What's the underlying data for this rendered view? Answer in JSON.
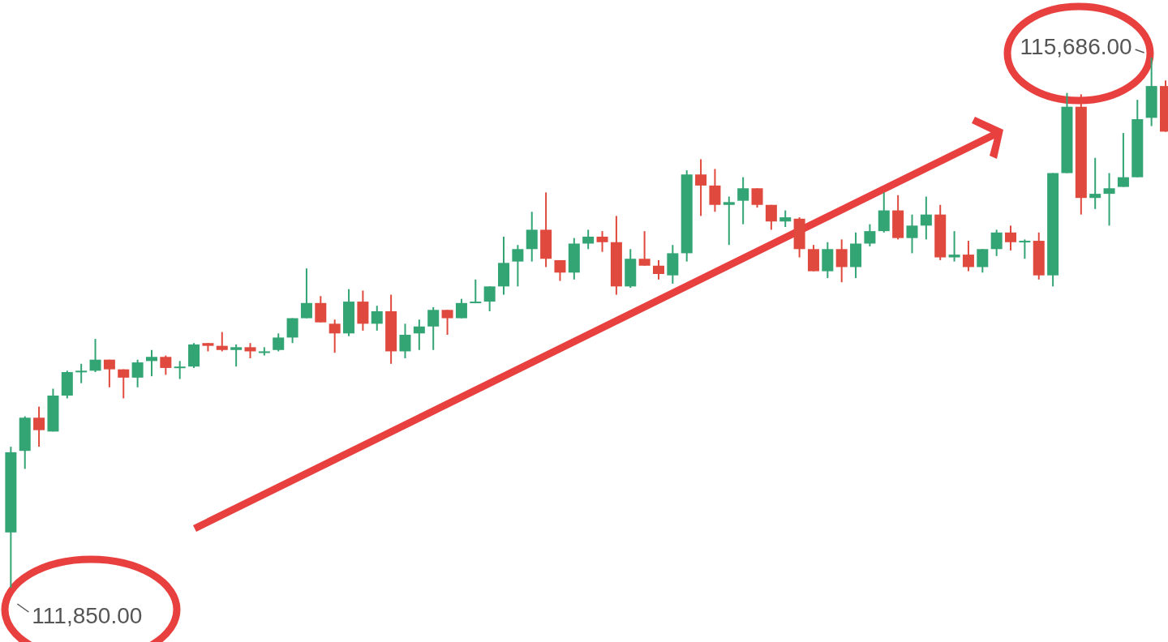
{
  "chart_data": {
    "type": "candlestick",
    "categories": [
      null,
      null,
      null,
      null,
      null,
      null,
      null,
      null,
      null,
      null,
      null,
      null,
      null,
      null,
      null,
      null,
      null,
      null,
      null,
      null,
      null,
      null,
      null,
      null,
      null,
      null,
      null,
      null,
      null,
      null,
      null,
      null,
      null,
      null,
      null,
      null,
      null,
      null,
      null,
      null,
      null,
      null,
      null,
      null,
      null,
      null,
      null,
      null,
      null,
      null,
      null,
      null,
      null,
      null,
      null,
      null,
      null,
      null,
      null,
      null,
      null,
      null,
      null,
      null,
      null,
      null,
      null,
      null,
      null,
      null,
      null,
      null,
      null,
      null,
      null,
      null,
      null,
      null,
      null,
      null,
      null,
      null,
      null,
      null
    ],
    "ohlc": [
      null,
      [
        112250,
        112870,
        111850,
        112830
      ],
      [
        112840,
        113090,
        112710,
        113080
      ],
      [
        113080,
        113160,
        112870,
        112990
      ],
      [
        112980,
        113290,
        112980,
        113240
      ],
      [
        113240,
        113420,
        113220,
        113410
      ],
      [
        113410,
        113470,
        113330,
        113420
      ],
      [
        113420,
        113650,
        113410,
        113500
      ],
      [
        113500,
        113500,
        113300,
        113430
      ],
      [
        113430,
        113430,
        113220,
        113370
      ],
      [
        113370,
        113500,
        113300,
        113480
      ],
      [
        113490,
        113570,
        113380,
        113520
      ],
      [
        113520,
        113530,
        113390,
        113440
      ],
      [
        113440,
        113490,
        113360,
        113450
      ],
      [
        113450,
        113620,
        113440,
        113610
      ],
      [
        113620,
        113620,
        113560,
        113600
      ],
      [
        113600,
        113700,
        113560,
        113570
      ],
      [
        113570,
        113610,
        113450,
        113590
      ],
      [
        113590,
        113620,
        113510,
        113560
      ],
      [
        113550,
        113590,
        113530,
        113560
      ],
      [
        113570,
        113690,
        113560,
        113660
      ],
      [
        113660,
        113800,
        113620,
        113800
      ],
      [
        113800,
        114160,
        113800,
        113910
      ],
      [
        113910,
        113960,
        113770,
        113770
      ],
      [
        113760,
        113790,
        113550,
        113690
      ],
      [
        113690,
        114010,
        113670,
        113920
      ],
      [
        113920,
        114000,
        113710,
        113760
      ],
      [
        113760,
        113890,
        113710,
        113850
      ],
      [
        113850,
        113970,
        113470,
        113560
      ],
      [
        113560,
        113760,
        113510,
        113680
      ],
      [
        113690,
        113790,
        113570,
        113740
      ],
      [
        113740,
        113880,
        113570,
        113860
      ],
      [
        113860,
        113860,
        113680,
        113800
      ],
      [
        113800,
        113940,
        113800,
        113910
      ],
      [
        113910,
        114080,
        113910,
        113920
      ],
      [
        113920,
        114030,
        113850,
        114030
      ],
      [
        114030,
        114390,
        113970,
        114200
      ],
      [
        114210,
        114330,
        114030,
        114300
      ],
      [
        114300,
        114570,
        114210,
        114440
      ],
      [
        114440,
        114710,
        114170,
        114230
      ],
      [
        114220,
        114220,
        114070,
        114130
      ],
      [
        114130,
        114380,
        114080,
        114340
      ],
      [
        114340,
        114440,
        114300,
        114390
      ],
      [
        114390,
        114430,
        114280,
        114350
      ],
      [
        114350,
        114540,
        113970,
        114030
      ],
      [
        114030,
        114300,
        114020,
        114230
      ],
      [
        114230,
        114430,
        114180,
        114180
      ],
      [
        114180,
        114220,
        114080,
        114120
      ],
      [
        114110,
        114330,
        114050,
        114270
      ],
      [
        114270,
        114870,
        114210,
        114840
      ],
      [
        114840,
        114950,
        114540,
        114760
      ],
      [
        114760,
        114880,
        114570,
        114620
      ],
      [
        114620,
        114680,
        114330,
        114640
      ],
      [
        114650,
        114820,
        114480,
        114740
      ],
      [
        114740,
        114740,
        114600,
        114620
      ],
      [
        114620,
        114620,
        114440,
        114500
      ],
      [
        114500,
        114580,
        114460,
        114530
      ],
      [
        114520,
        114530,
        114240,
        114300
      ],
      [
        114300,
        114330,
        114140,
        114140
      ],
      [
        114140,
        114350,
        114090,
        114300
      ],
      [
        114300,
        114370,
        114060,
        114170
      ],
      [
        114170,
        114420,
        114090,
        114340
      ],
      [
        114340,
        114480,
        114320,
        114430
      ],
      [
        114430,
        114710,
        114420,
        114580
      ],
      [
        114580,
        114690,
        114370,
        114380
      ],
      [
        114380,
        114550,
        114270,
        114470
      ],
      [
        114470,
        114680,
        114370,
        114550
      ],
      [
        114550,
        114620,
        114220,
        114240
      ],
      [
        114240,
        114430,
        114210,
        114260
      ],
      [
        114260,
        114360,
        114140,
        114170
      ],
      [
        114170,
        114300,
        114130,
        114300
      ],
      [
        114300,
        114440,
        114250,
        114420
      ],
      [
        114420,
        114470,
        114290,
        114350
      ],
      [
        114350,
        114370,
        114230,
        114360
      ],
      [
        114360,
        114420,
        114080,
        114110
      ],
      [
        114110,
        114850,
        114030,
        114850
      ],
      [
        114850,
        115430,
        114850,
        115330
      ],
      [
        115330,
        115420,
        114550,
        114670
      ],
      [
        114670,
        114960,
        114590,
        114700
      ],
      [
        114700,
        114850,
        114470,
        114740
      ],
      [
        114750,
        115140,
        114750,
        114820
      ],
      [
        114820,
        115380,
        114820,
        115240
      ],
      [
        115250,
        115686,
        115190,
        115480
      ],
      [
        115480,
        115520,
        115150,
        115150
      ]
    ],
    "annotations": [
      "111,850.00",
      "115,686.00"
    ]
  }
}
